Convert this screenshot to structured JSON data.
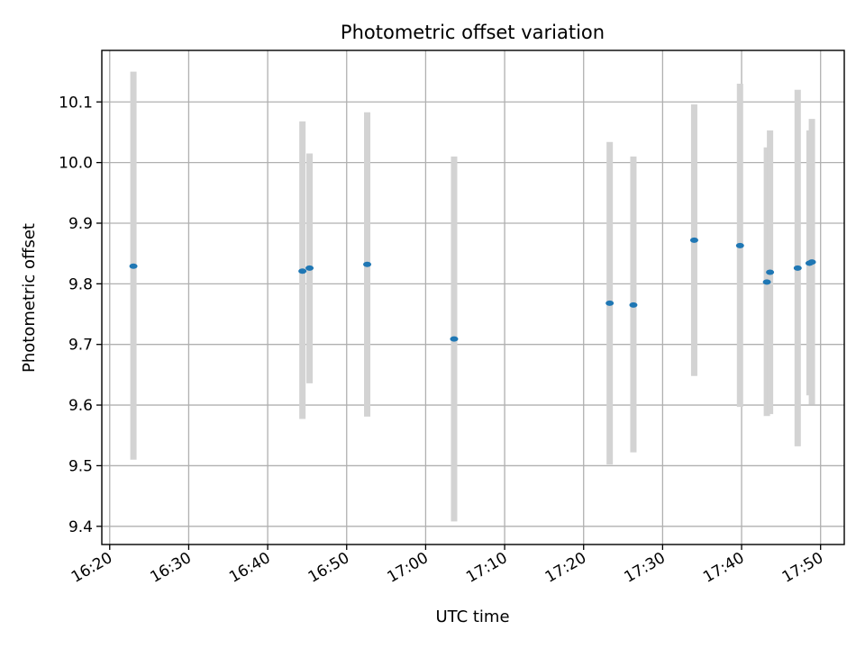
{
  "chart_data": {
    "type": "scatter",
    "title": "Photometric offset variation",
    "xlabel": "UTC time",
    "ylabel": "Photometric offset",
    "x_is_time": true,
    "xlim": [
      "16:19",
      "17:53"
    ],
    "ylim": [
      9.37,
      10.185
    ],
    "xticks": [
      "16:20",
      "16:30",
      "16:40",
      "16:50",
      "17:00",
      "17:10",
      "17:20",
      "17:30",
      "17:40",
      "17:50"
    ],
    "yticks": [
      9.4,
      9.5,
      9.6,
      9.7,
      9.8,
      9.9,
      10.0,
      10.1
    ],
    "ytick_labels": [
      "9.4",
      "9.5",
      "9.6",
      "9.7",
      "9.8",
      "9.9",
      "10.0",
      "10.1"
    ],
    "grid": true,
    "marker_color": "#1f77b4",
    "errorbar_color": "#d3d3d3",
    "series": [
      {
        "points": [
          {
            "t": "16:23:00",
            "y": 9.829,
            "lo": 9.51,
            "hi": 10.15
          },
          {
            "t": "16:44:24",
            "y": 9.821,
            "lo": 9.577,
            "hi": 10.068
          },
          {
            "t": "16:45:18",
            "y": 9.826,
            "lo": 9.636,
            "hi": 10.015
          },
          {
            "t": "16:52:36",
            "y": 9.832,
            "lo": 9.581,
            "hi": 10.083
          },
          {
            "t": "17:03:36",
            "y": 9.709,
            "lo": 9.408,
            "hi": 10.01
          },
          {
            "t": "17:23:18",
            "y": 9.768,
            "lo": 9.502,
            "hi": 10.034
          },
          {
            "t": "17:26:18",
            "y": 9.765,
            "lo": 9.522,
            "hi": 10.01
          },
          {
            "t": "17:34:00",
            "y": 9.872,
            "lo": 9.648,
            "hi": 10.096
          },
          {
            "t": "17:39:48",
            "y": 9.863,
            "lo": 9.597,
            "hi": 10.13
          },
          {
            "t": "17:43:12",
            "y": 9.803,
            "lo": 9.582,
            "hi": 10.025
          },
          {
            "t": "17:43:36",
            "y": 9.819,
            "lo": 9.585,
            "hi": 10.053
          },
          {
            "t": "17:47:06",
            "y": 9.826,
            "lo": 9.532,
            "hi": 10.12
          },
          {
            "t": "17:48:36",
            "y": 9.834,
            "lo": 9.616,
            "hi": 10.053
          },
          {
            "t": "17:48:54",
            "y": 9.836,
            "lo": 9.601,
            "hi": 10.072
          }
        ]
      }
    ]
  }
}
